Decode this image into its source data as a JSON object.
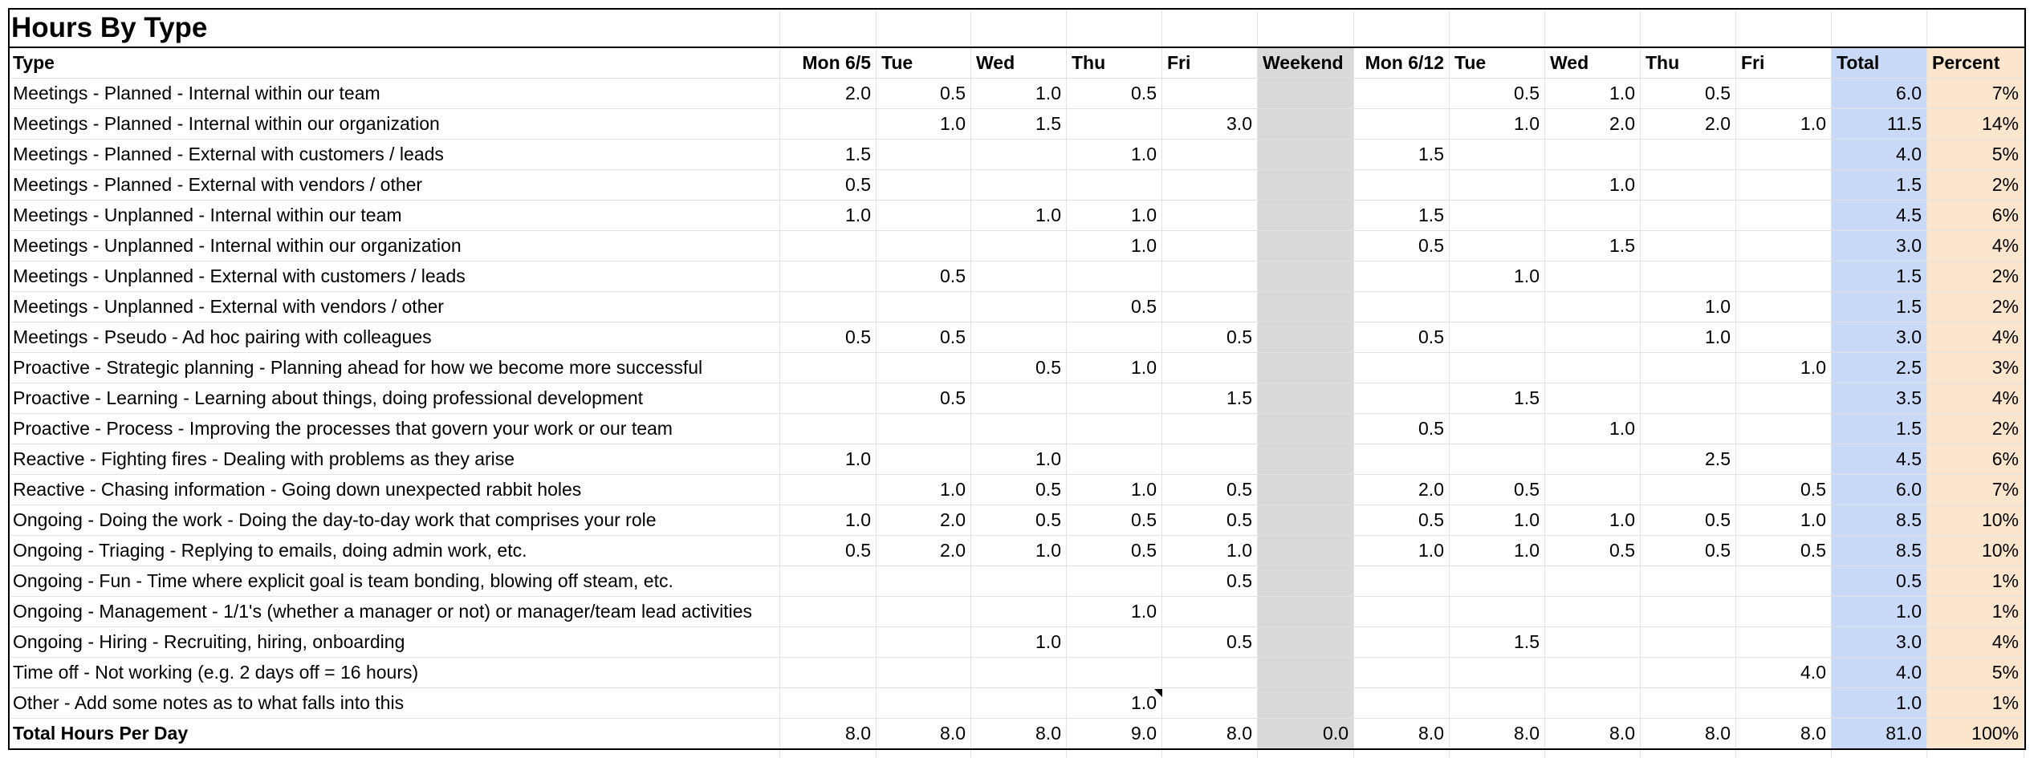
{
  "title": "Hours By Type",
  "colors": {
    "weekend": "#d9d9d9",
    "total": "#c9daf8",
    "percent": "#fce5cd"
  },
  "headers": [
    "Type",
    "Mon 6/5",
    "Tue",
    "Wed",
    "Thu",
    "Fri",
    "Weekend",
    "Mon 6/12",
    "Tue",
    "Wed",
    "Thu",
    "Fri",
    "Total",
    "Percent"
  ],
  "rows": [
    [
      "Meetings - Planned - Internal within our team",
      "2.0",
      "0.5",
      "1.0",
      "0.5",
      "",
      "",
      "",
      "0.5",
      "1.0",
      "0.5",
      "",
      "6.0",
      "7%"
    ],
    [
      "Meetings - Planned - Internal within our organization",
      "",
      "1.0",
      "1.5",
      "",
      "3.0",
      "",
      "",
      "1.0",
      "2.0",
      "2.0",
      "1.0",
      "11.5",
      "14%"
    ],
    [
      "Meetings - Planned - External with customers / leads",
      "1.5",
      "",
      "",
      "1.0",
      "",
      "",
      "1.5",
      "",
      "",
      "",
      "",
      "4.0",
      "5%"
    ],
    [
      "Meetings - Planned - External with vendors / other",
      "0.5",
      "",
      "",
      "",
      "",
      "",
      "",
      "",
      "1.0",
      "",
      "",
      "1.5",
      "2%"
    ],
    [
      "Meetings - Unplanned - Internal within our team",
      "1.0",
      "",
      "1.0",
      "1.0",
      "",
      "",
      "1.5",
      "",
      "",
      "",
      "",
      "4.5",
      "6%"
    ],
    [
      "Meetings - Unplanned - Internal within our organization",
      "",
      "",
      "",
      "1.0",
      "",
      "",
      "0.5",
      "",
      "1.5",
      "",
      "",
      "3.0",
      "4%"
    ],
    [
      "Meetings - Unplanned - External with customers / leads",
      "",
      "0.5",
      "",
      "",
      "",
      "",
      "",
      "1.0",
      "",
      "",
      "",
      "1.5",
      "2%"
    ],
    [
      "Meetings - Unplanned - External with vendors / other",
      "",
      "",
      "",
      "0.5",
      "",
      "",
      "",
      "",
      "",
      "1.0",
      "",
      "1.5",
      "2%"
    ],
    [
      "Meetings - Pseudo - Ad hoc pairing with colleagues",
      "0.5",
      "0.5",
      "",
      "",
      "0.5",
      "",
      "0.5",
      "",
      "",
      "1.0",
      "",
      "3.0",
      "4%"
    ],
    [
      "Proactive - Strategic planning - Planning ahead for how we become more successful",
      "",
      "",
      "0.5",
      "1.0",
      "",
      "",
      "",
      "",
      "",
      "",
      "1.0",
      "2.5",
      "3%"
    ],
    [
      "Proactive - Learning - Learning about things, doing professional development",
      "",
      "0.5",
      "",
      "",
      "1.5",
      "",
      "",
      "1.5",
      "",
      "",
      "",
      "3.5",
      "4%"
    ],
    [
      "Proactive - Process - Improving the processes that govern your work or our team",
      "",
      "",
      "",
      "",
      "",
      "",
      "0.5",
      "",
      "1.0",
      "",
      "",
      "1.5",
      "2%"
    ],
    [
      "Reactive - Fighting fires - Dealing with problems as they arise",
      "1.0",
      "",
      "1.0",
      "",
      "",
      "",
      "",
      "",
      "",
      "2.5",
      "",
      "4.5",
      "6%"
    ],
    [
      "Reactive - Chasing information - Going down unexpected rabbit holes",
      "",
      "1.0",
      "0.5",
      "1.0",
      "0.5",
      "",
      "2.0",
      "0.5",
      "",
      "",
      "0.5",
      "6.0",
      "7%"
    ],
    [
      "Ongoing - Doing the work - Doing the day-to-day work that comprises your role",
      "1.0",
      "2.0",
      "0.5",
      "0.5",
      "0.5",
      "",
      "0.5",
      "1.0",
      "1.0",
      "0.5",
      "1.0",
      "8.5",
      "10%"
    ],
    [
      "Ongoing - Triaging - Replying to emails, doing admin work, etc.",
      "0.5",
      "2.0",
      "1.0",
      "0.5",
      "1.0",
      "",
      "1.0",
      "1.0",
      "0.5",
      "0.5",
      "0.5",
      "8.5",
      "10%"
    ],
    [
      "Ongoing - Fun - Time where explicit goal is team bonding, blowing off steam, etc.",
      "",
      "",
      "",
      "",
      "0.5",
      "",
      "",
      "",
      "",
      "",
      "",
      "0.5",
      "1%"
    ],
    [
      "Ongoing - Management - 1/1's (whether a manager or not) or manager/team lead activities",
      "",
      "",
      "",
      "1.0",
      "",
      "",
      "",
      "",
      "",
      "",
      "",
      "1.0",
      "1%"
    ],
    [
      "Ongoing - Hiring - Recruiting, hiring, onboarding",
      "",
      "",
      "1.0",
      "",
      "0.5",
      "",
      "",
      "1.5",
      "",
      "",
      "",
      "3.0",
      "4%"
    ],
    [
      "Time off - Not working (e.g. 2 days off = 16 hours)",
      "",
      "",
      "",
      "",
      "",
      "",
      "",
      "",
      "",
      "",
      "4.0",
      "4.0",
      "5%"
    ],
    [
      "Other - Add some notes as to what falls into this",
      "",
      "",
      "",
      "1.0",
      "",
      "",
      "",
      "",
      "",
      "",
      "",
      "1.0",
      "1%"
    ]
  ],
  "totals": [
    "Total Hours Per Day",
    "8.0",
    "8.0",
    "8.0",
    "9.0",
    "8.0",
    "0.0",
    "8.0",
    "8.0",
    "8.0",
    "8.0",
    "8.0",
    "81.0",
    "100%"
  ]
}
